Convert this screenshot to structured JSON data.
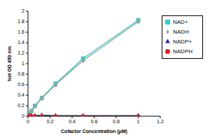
{
  "chart_data": {
    "type": "line",
    "x_label": "Cofactor Concentration (μM)",
    "y_label": "Net OD 450 nm",
    "x": [
      0,
      0.0156,
      0.03125,
      0.0625,
      0.125,
      0.25,
      0.5,
      1
    ],
    "series": [
      {
        "name": "NAD+",
        "color": "#33cccc",
        "marker": "square",
        "values": [
          0,
          0.06,
          0.1,
          0.2,
          0.35,
          0.62,
          1.1,
          1.83
        ]
      },
      {
        "name": "NADH",
        "color": "#a0a0a0",
        "marker": "diamond",
        "values": [
          0,
          0.05,
          0.09,
          0.19,
          0.34,
          0.6,
          1.06,
          1.8
        ]
      },
      {
        "name": "NADP+",
        "color": "#1f2f8f",
        "marker": "triangle",
        "values": [
          0.01,
          0.01,
          0.01,
          0.01,
          0.02,
          0.01,
          0.01,
          0.01
        ]
      },
      {
        "name": "NADPH",
        "color": "#e02020",
        "marker": "circle",
        "values": [
          0,
          0,
          0,
          0,
          0,
          0,
          0,
          0
        ]
      }
    ],
    "xlim": [
      0,
      1.2
    ],
    "xticks": [
      0,
      0.2,
      0.4,
      0.6,
      0.8,
      1,
      1.2
    ],
    "ylim": [
      0,
      2
    ],
    "yticks": [
      0,
      0.2,
      0.4,
      0.6,
      0.8,
      1,
      1.2,
      1.4,
      1.6,
      1.8,
      2
    ],
    "legend": "right",
    "grid": false
  }
}
